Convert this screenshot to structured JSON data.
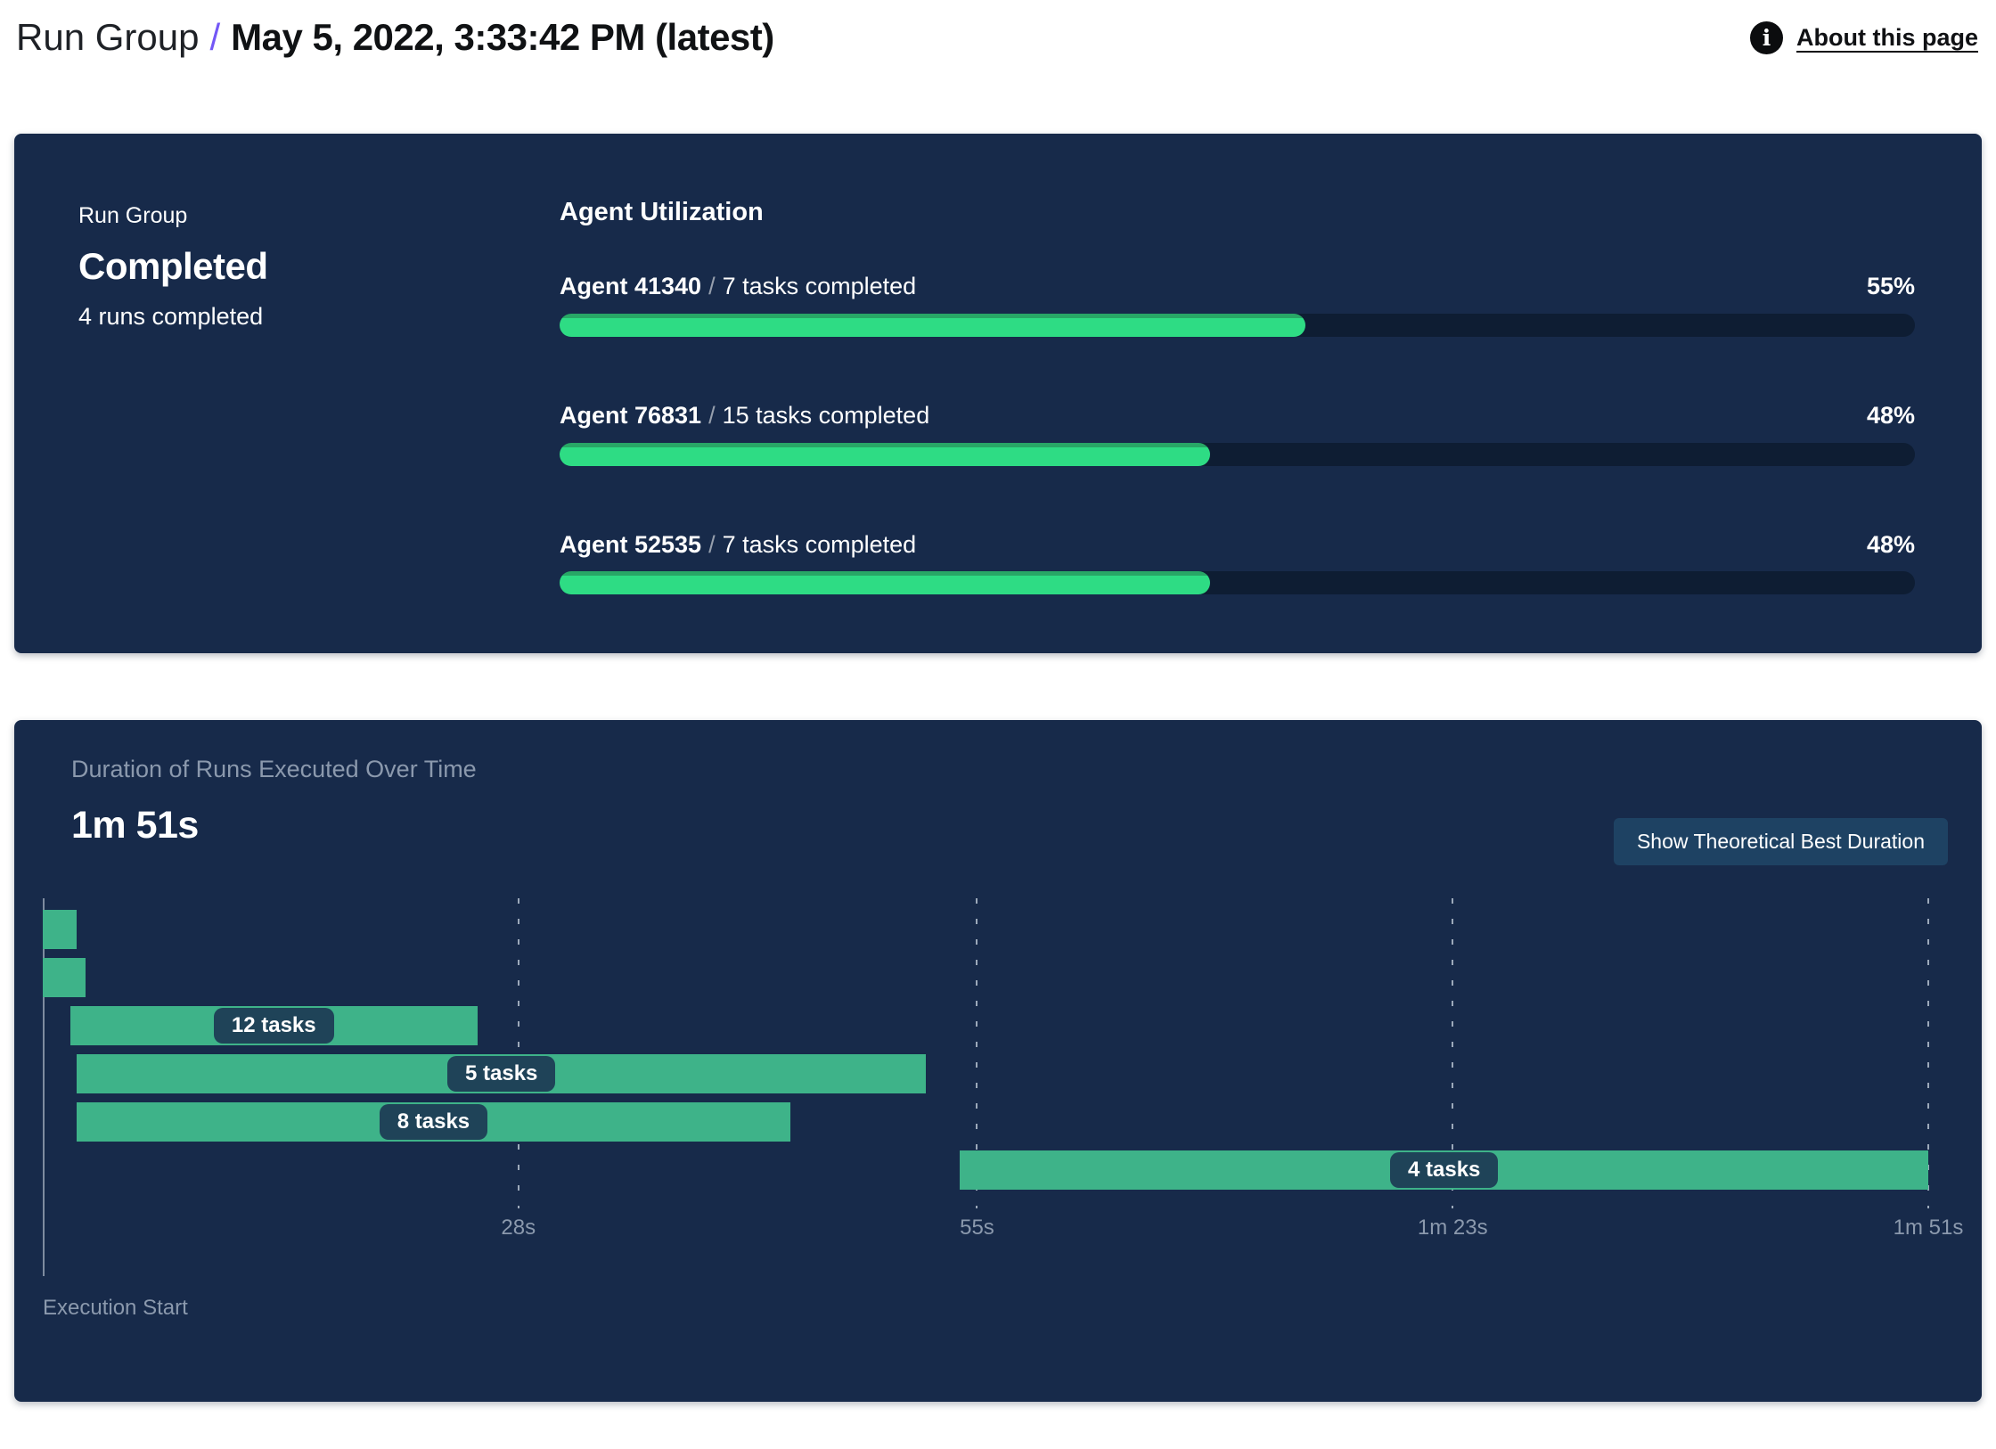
{
  "header": {
    "breadcrumb_root": "Run Group",
    "breadcrumb_separator": "/",
    "breadcrumb_current": "May 5, 2022, 3:33:42 PM (latest)",
    "about_link": "About this page",
    "info_icon": "info-icon"
  },
  "status_card": {
    "label": "Run Group",
    "status": "Completed",
    "sub_status": "4 runs completed"
  },
  "agent_utilization": {
    "title": "Agent Utilization",
    "separator": "/",
    "agents": [
      {
        "name": "Agent 41340",
        "tasks": "7 tasks completed",
        "percent": 55,
        "percent_label": "55%"
      },
      {
        "name": "Agent 76831",
        "tasks": "15 tasks completed",
        "percent": 48,
        "percent_label": "48%"
      },
      {
        "name": "Agent 52535",
        "tasks": "7 tasks completed",
        "percent": 48,
        "percent_label": "48%"
      }
    ]
  },
  "duration_panel": {
    "title": "Duration of Runs Executed Over Time",
    "total_duration": "1m 51s",
    "button_label": "Show Theoretical Best Duration",
    "axis_label": "Execution Start"
  },
  "chart_data": {
    "type": "gantt",
    "title": "Duration of Runs Executed Over Time",
    "x_unit": "seconds",
    "x_range": [
      0,
      111
    ],
    "grid": "dashed-vertical",
    "ticks": [
      {
        "t": 28,
        "label": "28s"
      },
      {
        "t": 55,
        "label": "55s"
      },
      {
        "t": 83,
        "label": "1m 23s"
      },
      {
        "t": 111,
        "label": "1m 51s"
      }
    ],
    "runs": [
      {
        "start": 0,
        "end": 2,
        "label": null
      },
      {
        "start": 0,
        "end": 2.5,
        "label": null
      },
      {
        "start": 1.6,
        "end": 25.6,
        "label": "12 tasks"
      },
      {
        "start": 2,
        "end": 52,
        "label": "5 tasks"
      },
      {
        "start": 2,
        "end": 44,
        "label": "8 tasks"
      },
      {
        "start": 54,
        "end": 111,
        "label": "4 tasks"
      }
    ]
  },
  "colors": {
    "panel_background": "#172A4A",
    "utilization_bar": "#2EDC84",
    "utilization_bar_edge": "#28A766",
    "utilization_track": "#0E1D33",
    "gantt_bar": "#3EB389",
    "badge_background": "#1F4358",
    "button_background": "#1E4263",
    "muted_text": "#8B99AD",
    "breadcrumb_accent": "#7357F6"
  }
}
